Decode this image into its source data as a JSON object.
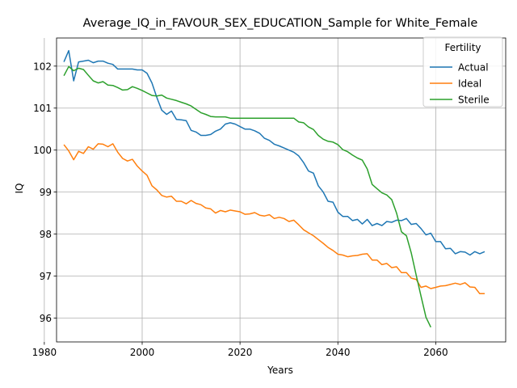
{
  "chart_data": {
    "type": "line",
    "title": "Average_IQ_in_FAVOUR_SEX_EDUCATION_Sample for White_Female",
    "xlabel": "Years",
    "ylabel": "IQ",
    "xlim": [
      1982.5,
      2074.3
    ],
    "ylim": [
      95.43,
      102.67
    ],
    "xticks": [
      1980,
      2000,
      2020,
      2040,
      2060
    ],
    "yticks": [
      96,
      97,
      98,
      99,
      100,
      101,
      102
    ],
    "grid": true,
    "legend": {
      "title": "Fertility",
      "position": "top-right"
    },
    "series": [
      {
        "name": "Actual",
        "color": "#1f77b4",
        "x": [
          1984,
          1985,
          1986,
          1987,
          1988,
          1989,
          1990,
          1991,
          1992,
          1993,
          1994,
          1995,
          1996,
          1997,
          1998,
          1999,
          2000,
          2001,
          2002,
          2003,
          2004,
          2005,
          2006,
          2007,
          2008,
          2009,
          2010,
          2011,
          2012,
          2013,
          2014,
          2015,
          2016,
          2017,
          2018,
          2019,
          2020,
          2021,
          2022,
          2023,
          2024,
          2025,
          2026,
          2027,
          2028,
          2029,
          2030,
          2031,
          2032,
          2033,
          2034,
          2035,
          2036,
          2037,
          2038,
          2039,
          2040,
          2041,
          2042,
          2043,
          2044,
          2045,
          2046,
          2047,
          2048,
          2049,
          2050,
          2051,
          2052,
          2053,
          2054,
          2055,
          2056,
          2057,
          2058,
          2059,
          2060,
          2061,
          2062,
          2063,
          2064,
          2065,
          2066,
          2067,
          2068,
          2069,
          2070
        ],
        "values": [
          102.1,
          102.37,
          101.65,
          102.1,
          102.12,
          102.14,
          102.08,
          102.12,
          102.12,
          102.07,
          102.04,
          101.93,
          101.93,
          101.93,
          101.93,
          101.91,
          101.91,
          101.83,
          101.6,
          101.25,
          100.95,
          100.85,
          100.93,
          100.73,
          100.72,
          100.7,
          100.47,
          100.43,
          100.35,
          100.35,
          100.37,
          100.45,
          100.5,
          100.62,
          100.65,
          100.62,
          100.56,
          100.5,
          100.5,
          100.46,
          100.4,
          100.28,
          100.23,
          100.14,
          100.1,
          100.05,
          100.0,
          99.95,
          99.86,
          99.7,
          99.5,
          99.45,
          99.15,
          99.0,
          98.78,
          98.76,
          98.52,
          98.42,
          98.42,
          98.32,
          98.35,
          98.24,
          98.35,
          98.2,
          98.25,
          98.2,
          98.3,
          98.28,
          98.33,
          98.32,
          98.37,
          98.23,
          98.25,
          98.13,
          97.98,
          98.02,
          97.82,
          97.82,
          97.65,
          97.66,
          97.53,
          97.58,
          97.57,
          97.5,
          97.58,
          97.53,
          97.58
        ]
      },
      {
        "name": "Ideal",
        "color": "#ff7f0e",
        "x": [
          1984,
          1985,
          1986,
          1987,
          1988,
          1989,
          1990,
          1991,
          1992,
          1993,
          1994,
          1995,
          1996,
          1997,
          1998,
          1999,
          2000,
          2001,
          2002,
          2003,
          2004,
          2005,
          2006,
          2007,
          2008,
          2009,
          2010,
          2011,
          2012,
          2013,
          2014,
          2015,
          2016,
          2017,
          2018,
          2019,
          2020,
          2021,
          2022,
          2023,
          2024,
          2025,
          2026,
          2027,
          2028,
          2029,
          2030,
          2031,
          2032,
          2033,
          2034,
          2035,
          2036,
          2037,
          2038,
          2039,
          2040,
          2041,
          2042,
          2043,
          2044,
          2045,
          2046,
          2047,
          2048,
          2049,
          2050,
          2051,
          2052,
          2053,
          2054,
          2055,
          2056,
          2057,
          2058,
          2059,
          2060,
          2061,
          2062,
          2063,
          2064,
          2065,
          2066,
          2067,
          2068,
          2069,
          2070
        ],
        "values": [
          100.13,
          99.98,
          99.77,
          99.97,
          99.92,
          100.08,
          100.02,
          100.15,
          100.14,
          100.08,
          100.15,
          99.95,
          99.8,
          99.74,
          99.78,
          99.62,
          99.5,
          99.4,
          99.15,
          99.05,
          98.92,
          98.88,
          98.9,
          98.78,
          98.78,
          98.72,
          98.8,
          98.73,
          98.7,
          98.62,
          98.6,
          98.5,
          98.56,
          98.53,
          98.57,
          98.55,
          98.53,
          98.47,
          98.48,
          98.51,
          98.45,
          98.43,
          98.46,
          98.37,
          98.4,
          98.37,
          98.3,
          98.33,
          98.22,
          98.1,
          98.03,
          97.96,
          97.87,
          97.78,
          97.68,
          97.61,
          97.52,
          97.5,
          97.46,
          97.48,
          97.49,
          97.52,
          97.53,
          97.38,
          97.38,
          97.27,
          97.3,
          97.2,
          97.22,
          97.08,
          97.08,
          96.95,
          96.92,
          96.73,
          96.76,
          96.7,
          96.73,
          96.76,
          96.77,
          96.8,
          96.83,
          96.8,
          96.84,
          96.74,
          96.73,
          96.58,
          96.58
        ]
      },
      {
        "name": "Sterile",
        "color": "#2ca02c",
        "x": [
          1984,
          1985,
          1986,
          1987,
          1988,
          1989,
          1990,
          1991,
          1992,
          1993,
          1994,
          1995,
          1996,
          1997,
          1998,
          1999,
          2000,
          2001,
          2002,
          2003,
          2004,
          2005,
          2006,
          2007,
          2008,
          2009,
          2010,
          2011,
          2012,
          2013,
          2014,
          2015,
          2016,
          2017,
          2018,
          2019,
          2020,
          2021,
          2022,
          2023,
          2024,
          2025,
          2026,
          2027,
          2028,
          2029,
          2030,
          2031,
          2032,
          2033,
          2034,
          2035,
          2036,
          2037,
          2038,
          2039,
          2040,
          2041,
          2042,
          2043,
          2044,
          2045,
          2046,
          2047,
          2048,
          2049,
          2050,
          2051,
          2052,
          2053,
          2054,
          2055,
          2056,
          2057,
          2058,
          2059
        ],
        "values": [
          101.77,
          101.99,
          101.89,
          101.95,
          101.92,
          101.78,
          101.65,
          101.6,
          101.63,
          101.55,
          101.54,
          101.49,
          101.43,
          101.44,
          101.51,
          101.47,
          101.42,
          101.36,
          101.3,
          101.29,
          101.31,
          101.24,
          101.21,
          101.18,
          101.14,
          101.1,
          101.05,
          100.97,
          100.89,
          100.85,
          100.8,
          100.79,
          100.79,
          100.79,
          100.76,
          100.76,
          100.76,
          100.76,
          100.76,
          100.76,
          100.76,
          100.76,
          100.76,
          100.76,
          100.76,
          100.76,
          100.76,
          100.76,
          100.67,
          100.65,
          100.55,
          100.49,
          100.35,
          100.26,
          100.21,
          100.19,
          100.13,
          100.01,
          99.96,
          99.88,
          99.81,
          99.76,
          99.55,
          99.18,
          99.08,
          98.98,
          98.93,
          98.82,
          98.5,
          98.05,
          97.96,
          97.55,
          97.02,
          96.52,
          96.02,
          95.78
        ]
      }
    ]
  }
}
